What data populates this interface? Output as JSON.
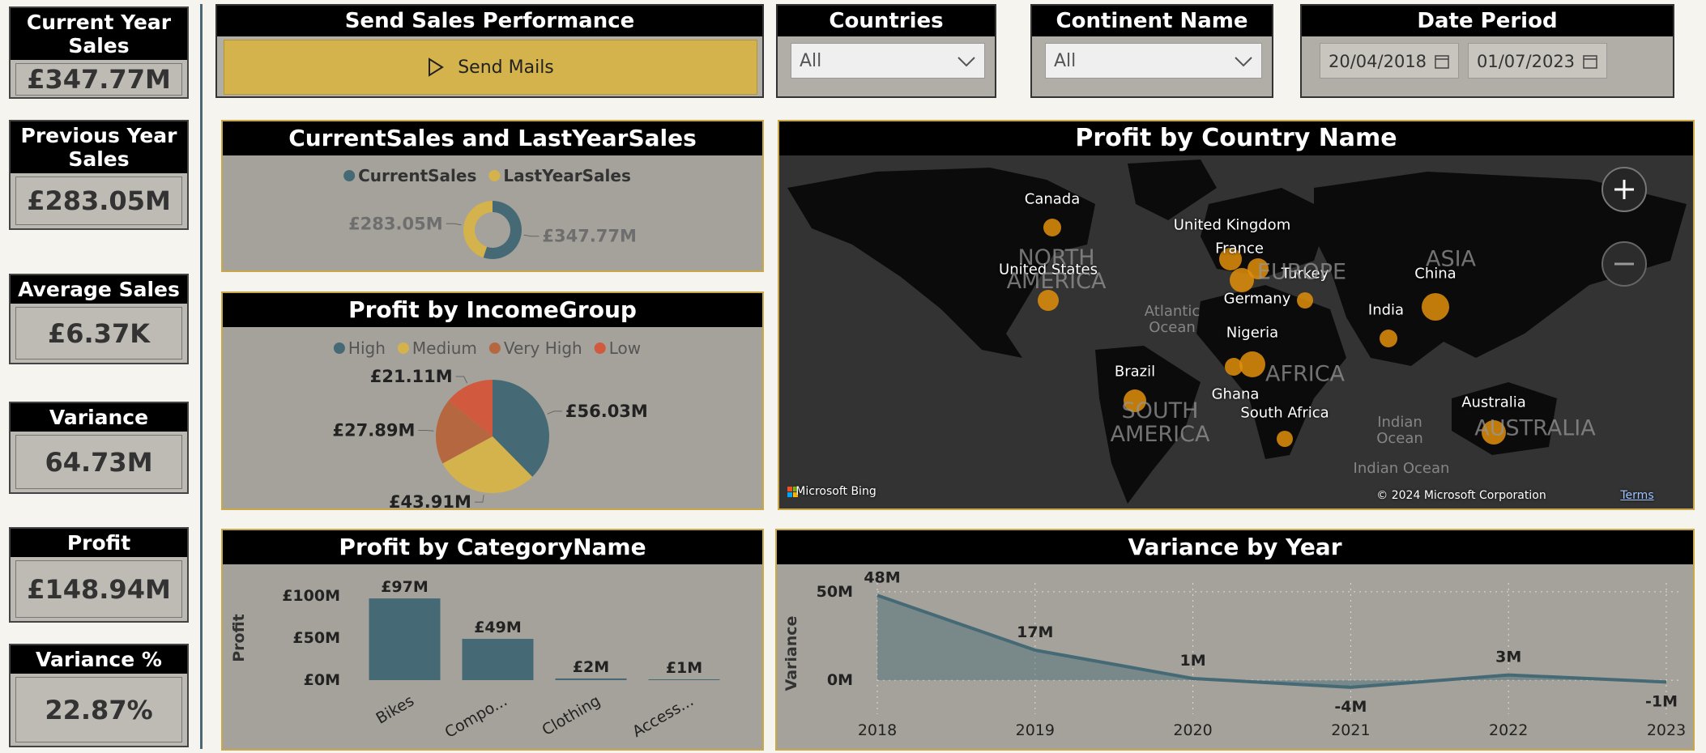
{
  "kpis": [
    {
      "title": "Current Year Sales",
      "value": "£347.77M"
    },
    {
      "title": "Previous Year Sales",
      "value": "£283.05M"
    },
    {
      "title": "Average Sales",
      "value": "£6.37K"
    },
    {
      "title": "Variance",
      "value": "64.73M"
    },
    {
      "title": "Profit",
      "value": "£148.94M"
    },
    {
      "title": "Variance %",
      "value": "22.87%"
    }
  ],
  "button": {
    "panel_title": "Send Sales Performance",
    "label": "Send Mails"
  },
  "filters": [
    {
      "title": "Countries",
      "value": "All"
    },
    {
      "title": "Continent Name",
      "value": "All"
    },
    {
      "title": "Date Period",
      "start": "20/04/2018",
      "end": "01/07/2023"
    }
  ],
  "chart_data": [
    {
      "type": "donut",
      "title": "CurrentSales and LastYearSales",
      "categories": [
        "CurrentSales",
        "LastYearSales"
      ],
      "values": [
        347.77,
        283.05
      ],
      "value_labels": [
        "£347.77M",
        "£283.05M"
      ],
      "colors": [
        "#456a75",
        "#d4b24c"
      ]
    },
    {
      "type": "pie",
      "title": "Profit by IncomeGroup",
      "categories": [
        "High",
        "Medium",
        "Very High",
        "Low"
      ],
      "values": [
        56.03,
        43.91,
        27.89,
        21.11
      ],
      "value_labels": [
        "£56.03M",
        "£43.91M",
        "£27.89M",
        "£21.11M"
      ],
      "colors": [
        "#456a75",
        "#d4b24c",
        "#b5683f",
        "#d0593e"
      ]
    },
    {
      "type": "bar",
      "title": "Profit by CategoryName",
      "y_label": "Profit",
      "categories": [
        "Bikes",
        "Compo...",
        "Clothing",
        "Access..."
      ],
      "values": [
        97,
        49,
        2,
        1
      ],
      "value_labels": [
        "£97M",
        "£49M",
        "£2M",
        "£1M"
      ],
      "color": "#456a75",
      "ylim": [
        0,
        100
      ],
      "yticks": [
        {
          "value": 0,
          "label": "£0M"
        },
        {
          "value": 50,
          "label": "£50M"
        },
        {
          "value": 100,
          "label": "£100M"
        }
      ],
      "grid": false
    },
    {
      "type": "map",
      "title": "Profit by Country Name",
      "color": "#e08f0b",
      "categories": [
        "Canada",
        "United States",
        "United Kingdom",
        "France",
        "Turkey",
        "Germany",
        "China",
        "India",
        "Nigeria",
        "Ghana",
        "Brazil",
        "South Africa",
        "Australia"
      ],
      "region_labels": [
        "NORTH AMERICA",
        "EUROPE",
        "ASIA",
        "AFRICA",
        "SOUTH AMERICA",
        "AUSTRALIA",
        "Atlantic Ocean",
        "Indian Ocean",
        "Indian Ocean"
      ],
      "attribution": [
        "Microsoft Bing",
        "© 2024 Microsoft Corporation",
        "Terms"
      ]
    },
    {
      "type": "area",
      "title": "Variance by Year",
      "y_label": "Variance",
      "x": [
        2018,
        2019,
        2020,
        2021,
        2022,
        2023
      ],
      "values": [
        48,
        17,
        1,
        -4,
        3,
        -1
      ],
      "value_labels": [
        "48M",
        "17M",
        "1M",
        "-4M",
        "3M",
        "-1M"
      ],
      "color": "#456a75",
      "xlim": [
        2018,
        2023
      ],
      "xticks": [
        2018,
        2019,
        2020,
        2021,
        2022,
        2023
      ],
      "ylim": [
        -10,
        55
      ],
      "yticks": [
        {
          "value": 0,
          "label": "0M"
        },
        {
          "value": 50,
          "label": "50M"
        }
      ],
      "grid": true
    }
  ]
}
